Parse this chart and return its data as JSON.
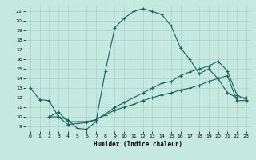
{
  "xlabel": "Humidex (Indice chaleur)",
  "bg_color": "#c5e8e0",
  "grid_color": "#aed0c8",
  "line_color": "#1a6060",
  "xlim": [
    -0.5,
    23.5
  ],
  "ylim": [
    8.5,
    21.7
  ],
  "xticks": [
    0,
    1,
    2,
    3,
    4,
    5,
    6,
    7,
    8,
    9,
    10,
    11,
    12,
    13,
    14,
    15,
    16,
    17,
    18,
    19,
    20,
    21,
    22,
    23
  ],
  "yticks": [
    9,
    10,
    11,
    12,
    13,
    14,
    15,
    16,
    17,
    18,
    19,
    20,
    21
  ],
  "curve1_x": [
    0,
    1,
    2,
    3,
    4,
    5,
    6,
    7,
    8,
    9,
    10,
    11,
    12,
    13,
    14,
    15,
    16,
    17,
    18,
    19,
    20,
    21,
    22,
    23
  ],
  "curve1_y": [
    13.0,
    11.8,
    11.7,
    10.0,
    9.7,
    8.8,
    8.7,
    9.5,
    14.8,
    19.3,
    20.3,
    21.0,
    21.3,
    21.0,
    20.7,
    19.5,
    17.2,
    16.0,
    14.5,
    15.0,
    14.0,
    12.5,
    12.0,
    12.0
  ],
  "curve2_x": [
    2,
    3,
    4,
    5,
    6,
    7,
    8,
    9,
    10,
    11,
    12,
    13,
    14,
    15,
    16,
    17,
    18,
    19,
    20,
    21,
    22,
    23
  ],
  "curve2_y": [
    10.0,
    10.0,
    9.2,
    9.3,
    9.4,
    9.7,
    10.3,
    11.0,
    11.5,
    12.0,
    12.5,
    13.0,
    13.5,
    13.7,
    14.3,
    14.7,
    15.0,
    15.3,
    15.8,
    14.8,
    12.3,
    11.8
  ],
  "curve3_x": [
    2,
    3,
    4,
    5,
    6,
    7,
    8,
    9,
    10,
    11,
    12,
    13,
    14,
    15,
    16,
    17,
    18,
    19,
    20,
    21,
    22,
    23
  ],
  "curve3_y": [
    10.0,
    10.5,
    9.5,
    9.5,
    9.5,
    9.7,
    10.2,
    10.7,
    11.0,
    11.3,
    11.7,
    12.0,
    12.3,
    12.5,
    12.8,
    13.0,
    13.3,
    13.7,
    14.0,
    14.3,
    11.7,
    11.7
  ]
}
